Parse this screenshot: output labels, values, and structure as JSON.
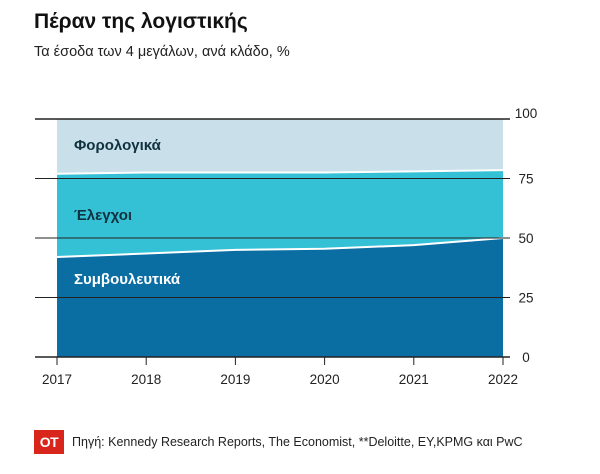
{
  "header": {
    "title": "Πέραν της λογιστικής",
    "subtitle": "Τα έσοδα των 4 μεγάλων, ανά κλάδο, %"
  },
  "footer": {
    "logo_text": "ΟΤ",
    "source": "Πηγή: Kennedy Research Reports, The Economist, **Deloitte, EY,KPMG και PwC"
  },
  "colors": {
    "consulting": "#0b6ea3",
    "audit": "#34c1d6",
    "tax": "#c9dfea",
    "gridline": "#222222",
    "axis_text": "#222222"
  },
  "chart_data": {
    "type": "area",
    "stacked": true,
    "x": [
      "2017",
      "2018",
      "2019",
      "2020",
      "2021",
      "2022"
    ],
    "ylim": [
      0,
      100
    ],
    "yticks": [
      "0",
      "25",
      "50",
      "75",
      "100"
    ],
    "y_axis_side": "right",
    "grid": true,
    "series": [
      {
        "name": "Συμβουλευτικά",
        "values": [
          42,
          43.5,
          45,
          45.5,
          47,
          50
        ]
      },
      {
        "name": "Έλεγχοι",
        "values": [
          35,
          34,
          32.5,
          32,
          31,
          28.5
        ]
      },
      {
        "name": "Φορολογικά",
        "values": [
          23,
          22.5,
          22.5,
          22.5,
          22,
          21.5
        ]
      }
    ]
  }
}
